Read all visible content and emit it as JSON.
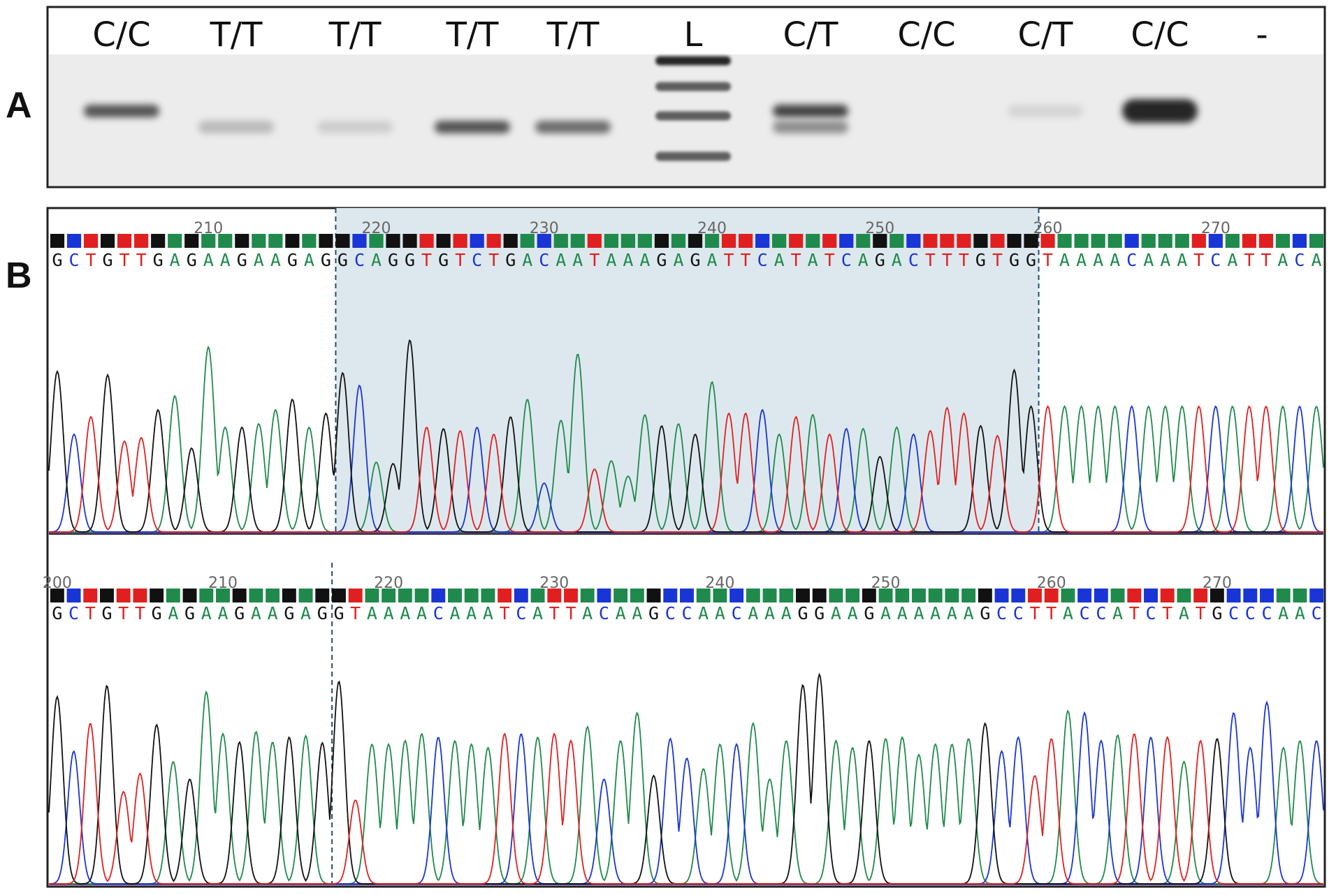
{
  "panels": {
    "A": "A",
    "B": "B"
  },
  "gel": {
    "lanes": [
      {
        "label": "C/C",
        "bands": [
          {
            "size": "upper",
            "intensity": 0.85
          }
        ]
      },
      {
        "label": "T/T",
        "bands": [
          {
            "size": "lower",
            "intensity": 0.35
          }
        ]
      },
      {
        "label": "T/T",
        "bands": [
          {
            "size": "lower",
            "intensity": 0.22
          }
        ]
      },
      {
        "label": "T/T",
        "bands": [
          {
            "size": "lower",
            "intensity": 0.85
          }
        ]
      },
      {
        "label": "T/T",
        "bands": [
          {
            "size": "lower",
            "intensity": 0.75
          }
        ]
      },
      {
        "label": "L",
        "ladder": true,
        "bands": [
          {
            "size": "l1",
            "intensity": 1.0
          },
          {
            "size": "l2",
            "intensity": 0.8
          },
          {
            "size": "l3",
            "intensity": 0.8
          },
          {
            "size": "l4",
            "intensity": 0.8
          }
        ]
      },
      {
        "label": "C/T",
        "bands": [
          {
            "size": "upper",
            "intensity": 0.9
          },
          {
            "size": "lower",
            "intensity": 0.6
          }
        ]
      },
      {
        "label": "C/C",
        "bands": []
      },
      {
        "label": "C/T",
        "bands": [
          {
            "size": "upper",
            "intensity": 0.15
          }
        ]
      },
      {
        "label": "C/C",
        "bands": [
          {
            "size": "upper",
            "intensity": 1.0
          }
        ]
      },
      {
        "label": "-",
        "bands": []
      }
    ]
  },
  "traces": [
    {
      "sequence": "GCTGTTGAGAAGAAGAGGCAGGTGTCTGACAATAAAGAGATTCATATCAGACTTTGTGGTAAAACAAATCATTACA",
      "ticks": [
        {
          "label": "210",
          "index": 9
        },
        {
          "label": "220",
          "index": 19
        },
        {
          "label": "230",
          "index": 29
        },
        {
          "label": "240",
          "index": 39
        },
        {
          "label": "250",
          "index": 49
        },
        {
          "label": "260",
          "index": 59
        },
        {
          "label": "270",
          "index": 69
        }
      ],
      "highlight_from": 17,
      "highlight_to": 58
    },
    {
      "sequence": "GCTGTTGAGAAGAAGAGGTAAAACAAATCATTACAAGCCAACAAAGGAAGAAAAAAGCCTTACCATCTATGCCCAAC",
      "ticks": [
        {
          "label": "200",
          "index": 0
        },
        {
          "label": "210",
          "index": 10
        },
        {
          "label": "220",
          "index": 20
        },
        {
          "label": "230",
          "index": 30
        },
        {
          "label": "240",
          "index": 40
        },
        {
          "label": "250",
          "index": 50
        },
        {
          "label": "260",
          "index": 60
        },
        {
          "label": "270",
          "index": 70
        }
      ],
      "highlight_from": 17
    }
  ],
  "colors": {
    "A": "#1f8a4c",
    "C": "#1a35d6",
    "G": "#111111",
    "T": "#e02020",
    "highlight": "#dde8ee",
    "divider": "#1f4f6a"
  }
}
